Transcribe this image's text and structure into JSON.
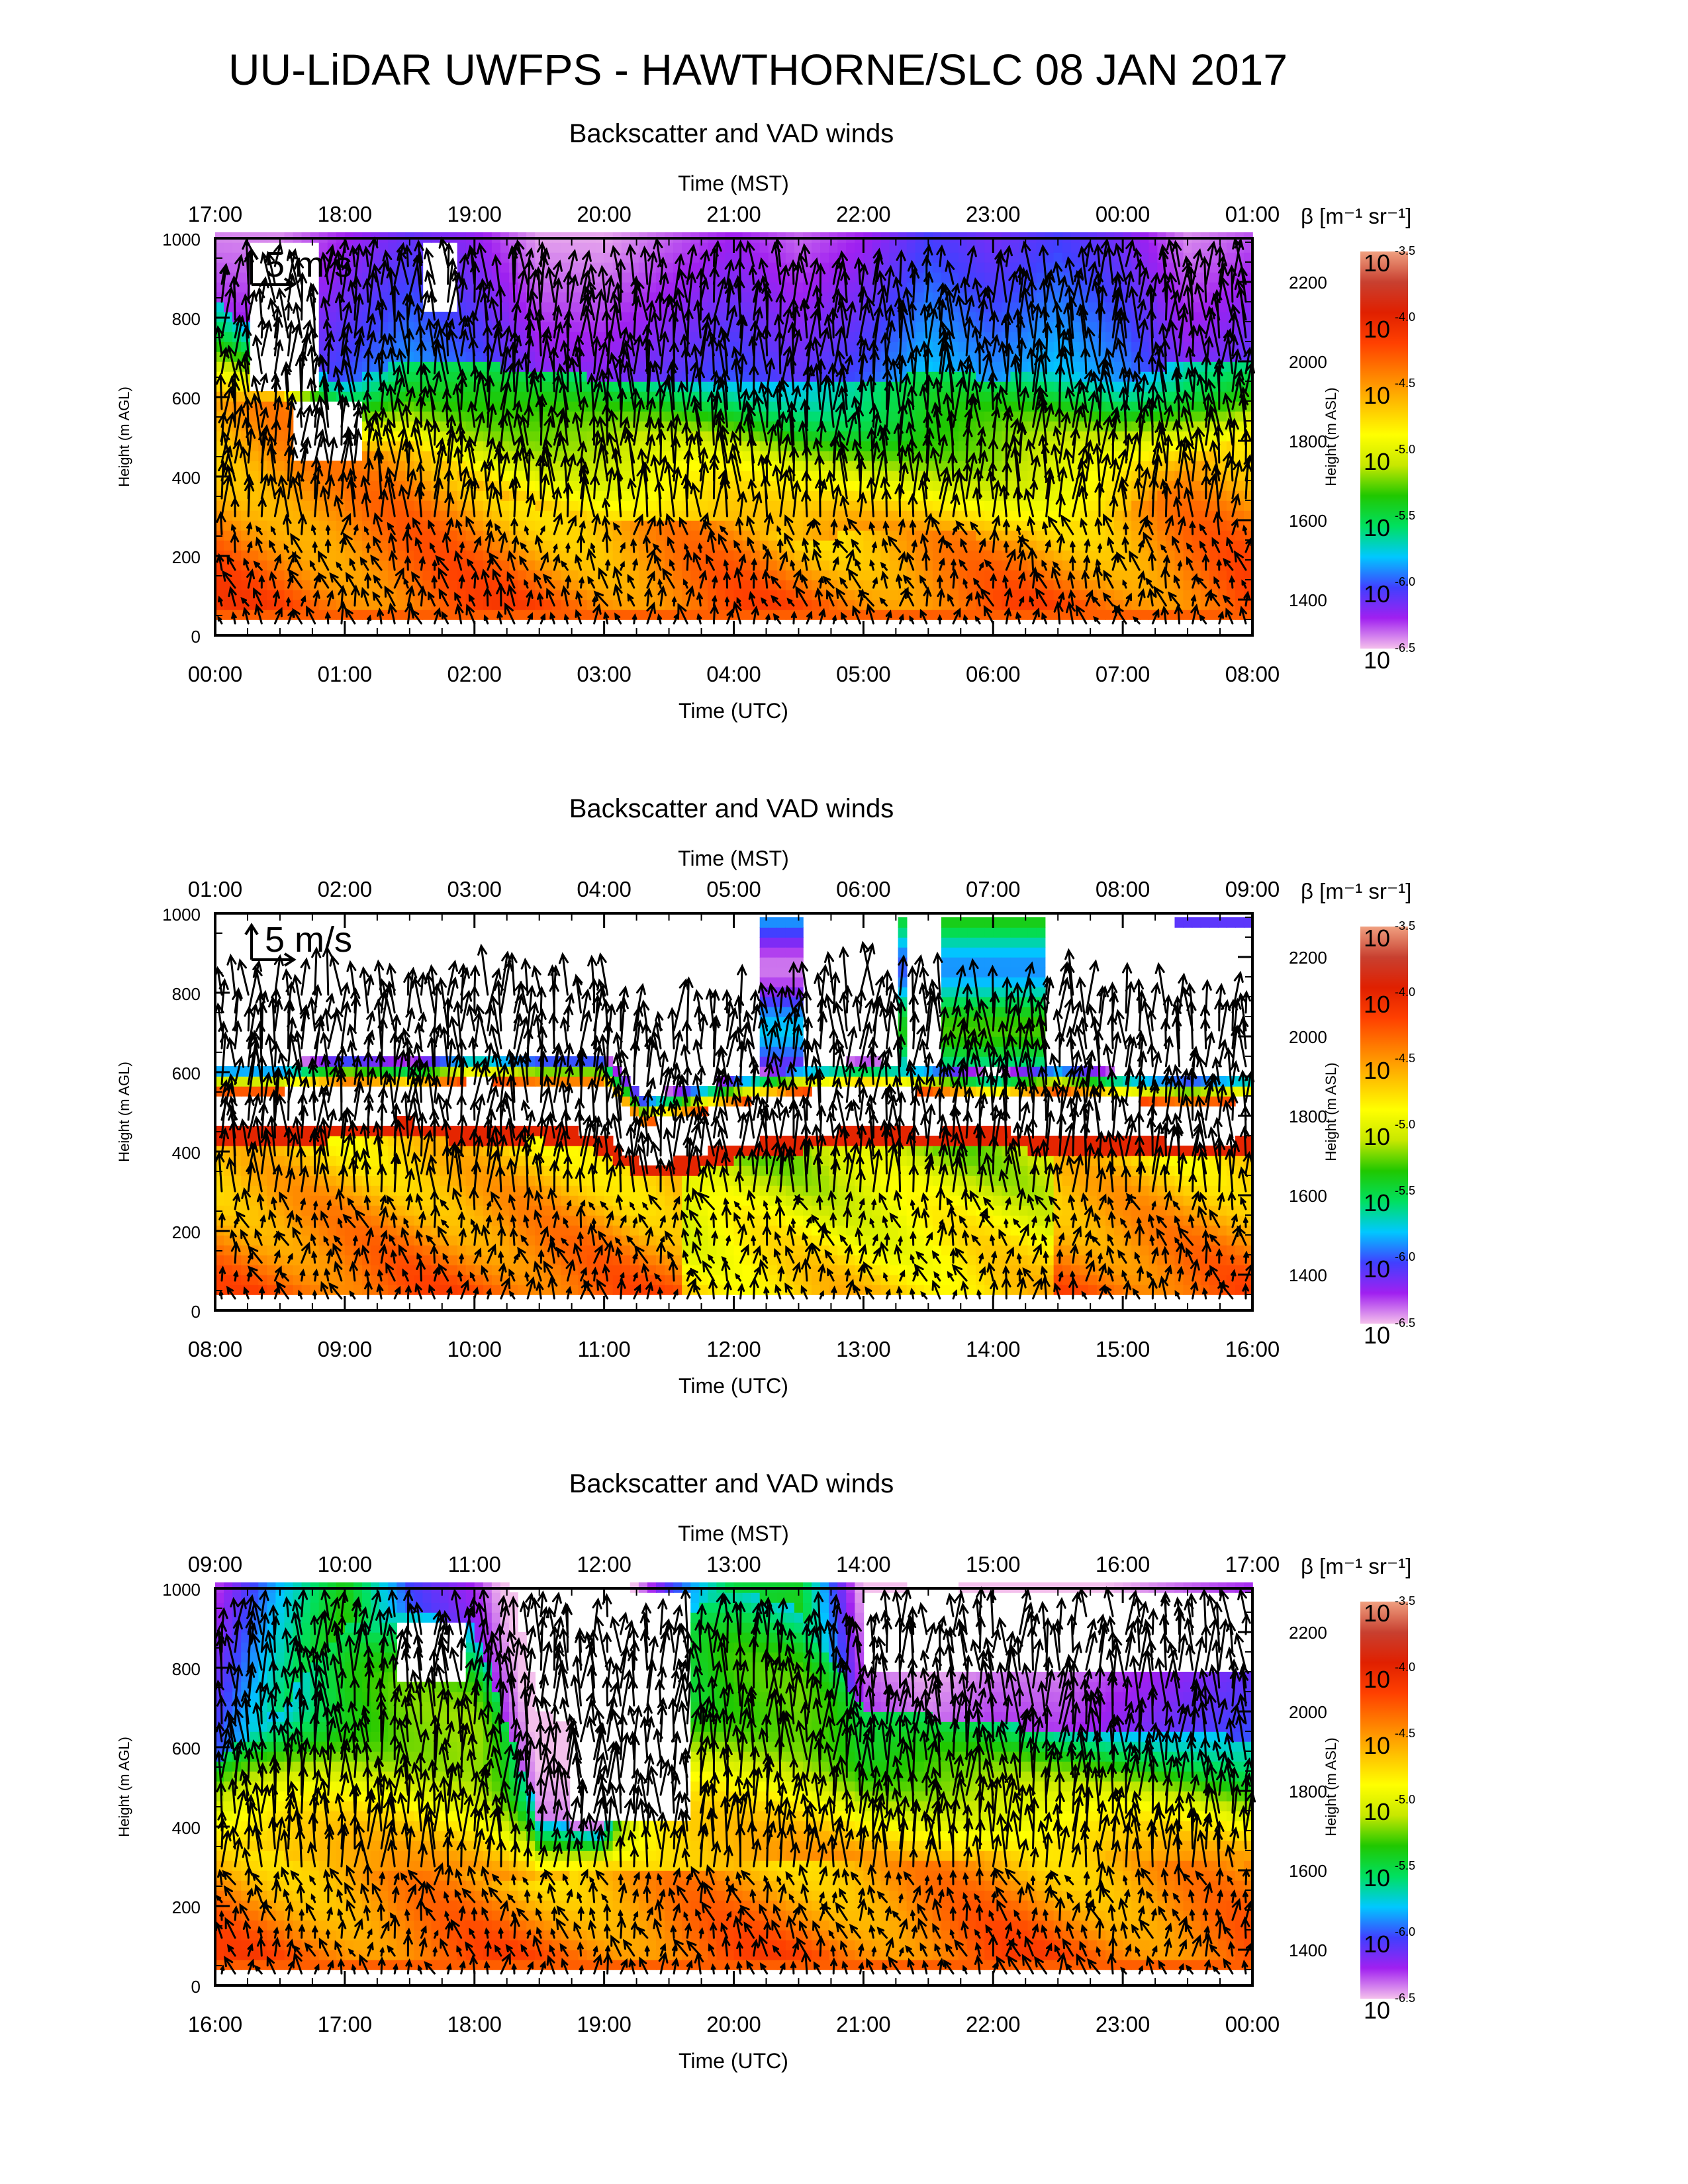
{
  "title": "UU-LiDAR UWFPS - HAWTHORNE/SLC 08 JAN 2017",
  "colorbar": {
    "label": "β [m⁻¹ sr⁻¹]",
    "base": "10",
    "exponents": [
      "-3.5",
      "-4.0",
      "-4.5",
      "-5.0",
      "-5.5",
      "-6.0",
      "-6.5"
    ],
    "range_log10": [
      -6.5,
      -3.5
    ],
    "colors": [
      "#f4c0ec",
      "#a020f0",
      "#4040ff",
      "#00c8ff",
      "#00e060",
      "#20c800",
      "#c8e800",
      "#ffff00",
      "#ffc000",
      "#ff8000",
      "#ff4000",
      "#e02000",
      "#c84030",
      "#f0a080"
    ]
  },
  "chart_data": [
    {
      "type": "heatmap",
      "title": "Backscatter and VAD winds",
      "top_axis_label": "Time (MST)",
      "top_ticks": [
        "17:00",
        "18:00",
        "19:00",
        "20:00",
        "21:00",
        "22:00",
        "23:00",
        "00:00",
        "01:00"
      ],
      "xlabel": "Time (UTC)",
      "x_ticks": [
        "00:00",
        "01:00",
        "02:00",
        "03:00",
        "04:00",
        "05:00",
        "06:00",
        "07:00",
        "08:00"
      ],
      "ylabel": "Height (m AGL)",
      "y_ticks": [
        "0",
        "200",
        "400",
        "600",
        "800",
        "1000"
      ],
      "ylim": [
        0,
        1000
      ],
      "y2label": "Height (m ASL)",
      "y2_ticks": [
        "1400",
        "1600",
        "1800",
        "2000",
        "2200"
      ],
      "y2_offset_m": 1310,
      "reference_vector": "5 m/s",
      "profile": {
        "hour": [
          0,
          0.5,
          1,
          1.5,
          2,
          2.5,
          3,
          3.5,
          4,
          4.5,
          5,
          5.5,
          6,
          6.5,
          7,
          7.5,
          8
        ],
        "bl_top_m": [
          580,
          600,
          450,
          470,
          380,
          320,
          280,
          300,
          300,
          240,
          260,
          260,
          250,
          260,
          310,
          400,
          500
        ],
        "mixed_top_m": [
          850,
          700,
          640,
          700,
          690,
          660,
          650,
          650,
          650,
          640,
          640,
          660,
          650,
          660,
          640,
          700,
          680
        ],
        "upper_log10": [
          -6.3,
          -6.2,
          -6.0,
          -5.9,
          -6.0,
          -6.2,
          -6.2,
          -6.1,
          -6.0,
          -6.1,
          -6.0,
          -5.8,
          -5.9,
          -5.8,
          -5.9,
          -6.2,
          -6.1
        ]
      },
      "gaps": [
        {
          "t0": 0.3,
          "t1": 0.8,
          "h0": 620,
          "h1": 1000
        },
        {
          "t0": 0.6,
          "t1": 1.15,
          "h0": 430,
          "h1": 600
        },
        {
          "t0": 1.6,
          "t1": 1.85,
          "h0": 820,
          "h1": 1000
        }
      ]
    },
    {
      "type": "heatmap",
      "title": "Backscatter and VAD winds",
      "top_axis_label": "Time (MST)",
      "top_ticks": [
        "01:00",
        "02:00",
        "03:00",
        "04:00",
        "05:00",
        "06:00",
        "07:00",
        "08:00",
        "09:00"
      ],
      "xlabel": "Time (UTC)",
      "x_ticks": [
        "08:00",
        "09:00",
        "10:00",
        "11:00",
        "12:00",
        "13:00",
        "14:00",
        "15:00",
        "16:00"
      ],
      "ylabel": "Height (m AGL)",
      "y_ticks": [
        "0",
        "200",
        "400",
        "600",
        "800",
        "1000"
      ],
      "ylim": [
        0,
        1000
      ],
      "y2label": "Height (m ASL)",
      "y2_ticks": [
        "1400",
        "1600",
        "1800",
        "2000",
        "2200"
      ],
      "y2_offset_m": 1310,
      "reference_vector": "5 m/s",
      "profile": {
        "hour": [
          0,
          0.5,
          1,
          1.5,
          2,
          2.5,
          3,
          3.3,
          3.6,
          4,
          4.5,
          5,
          5.5,
          6,
          6.5,
          7,
          7.5,
          8
        ],
        "bl_top_m": [
          420,
          420,
          430,
          440,
          420,
          430,
          400,
          330,
          340,
          380,
          400,
          420,
          410,
          420,
          390,
          400,
          380,
          390
        ],
        "mixed_top_m": [
          620,
          620,
          640,
          630,
          650,
          640,
          640,
          540,
          560,
          590,
          620,
          630,
          620,
          600,
          620,
          600,
          590,
          600
        ],
        "upper_log10": [
          -7,
          -7,
          -7,
          -7,
          -7,
          -7,
          -7,
          -7,
          -7,
          -7,
          -7,
          -7,
          -7,
          -7,
          -7,
          -7,
          -7,
          -7
        ]
      },
      "upper_patches": [
        {
          "t0": 4.2,
          "t1": 4.5,
          "h0": 620,
          "h1": 1000,
          "log10": -6.1
        },
        {
          "t0": 5.25,
          "t1": 5.35,
          "h0": 620,
          "h1": 1000,
          "log10": -5.7
        },
        {
          "t0": 5.6,
          "t1": 6.4,
          "h0": 620,
          "h1": 1000,
          "log10": -5.6
        },
        {
          "t0": 7.4,
          "t1": 8.0,
          "h0": 960,
          "h1": 1000,
          "log10": -6.3
        }
      ],
      "gaps": []
    },
    {
      "type": "heatmap",
      "title": "Backscatter and VAD winds",
      "top_axis_label": "Time (MST)",
      "top_ticks": [
        "09:00",
        "10:00",
        "11:00",
        "12:00",
        "13:00",
        "14:00",
        "15:00",
        "16:00",
        "17:00"
      ],
      "xlabel": "Time (UTC)",
      "x_ticks": [
        "16:00",
        "17:00",
        "18:00",
        "19:00",
        "20:00",
        "21:00",
        "22:00",
        "23:00",
        "00:00"
      ],
      "ylabel": "Height (m AGL)",
      "y_ticks": [
        "0",
        "200",
        "400",
        "600",
        "800",
        "1000"
      ],
      "ylim": [
        0,
        1000
      ],
      "y2label": "Height (m ASL)",
      "y2_ticks": [
        "1400",
        "1600",
        "1800",
        "2000",
        "2200"
      ],
      "y2_offset_m": 1310,
      "reference_vector": "",
      "profile": {
        "hour": [
          0,
          0.5,
          1,
          1.5,
          2,
          2.5,
          3,
          3.5,
          4,
          4.5,
          5,
          5.5,
          6,
          6.5,
          7,
          7.5,
          8
        ],
        "bl_top_m": [
          360,
          330,
          300,
          300,
          280,
          260,
          300,
          300,
          300,
          320,
          320,
          320,
          330,
          330,
          330,
          320,
          300
        ],
        "mixed_top_m": [
          560,
          700,
          900,
          950,
          900,
          420,
          380,
          900,
          1000,
          950,
          700,
          680,
          660,
          640,
          640,
          640,
          620
        ],
        "upper_log10": [
          -6.0,
          -5.6,
          -5.3,
          -6.0,
          -6.2,
          -6.4,
          -6.4,
          -6.0,
          -5.5,
          -5.4,
          -6.3,
          -6.4,
          -6.3,
          -6.3,
          -6.2,
          -6.1,
          -6.0
        ]
      },
      "gaps": [
        {
          "t0": 1.4,
          "t1": 1.95,
          "h0": 760,
          "h1": 920
        },
        {
          "t0": 2.75,
          "t1": 3.65,
          "h0": 420,
          "h1": 1000
        },
        {
          "t0": 5.0,
          "t1": 8.0,
          "h0": 780,
          "h1": 1000
        }
      ]
    }
  ]
}
